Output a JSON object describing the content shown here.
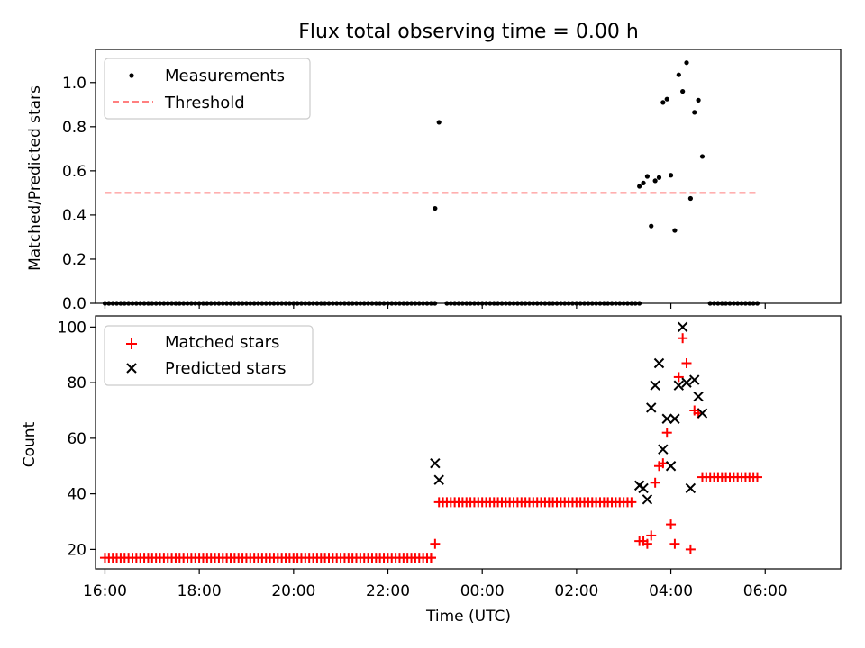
{
  "chart_data": [
    {
      "type": "scatter",
      "title": "Flux total observing time = 0.00 h",
      "xlabel": "",
      "ylabel": "Matched/Predicted stars",
      "xlim": [
        15.8,
        31.6
      ],
      "ylim": [
        0,
        1.15
      ],
      "yticks": [
        0.0,
        0.2,
        0.4,
        0.6,
        0.8,
        1.0
      ],
      "ytick_labels": [
        "0.0",
        "0.2",
        "0.4",
        "0.6",
        "0.8",
        "1.0"
      ],
      "threshold": {
        "y": 0.5,
        "x_range": [
          16.0,
          29.833
        ],
        "color": "#ff7f7f"
      },
      "legend": {
        "position": "top-left",
        "entries": [
          "Measurements",
          "Threshold"
        ]
      },
      "series": [
        {
          "name": "Measurements",
          "color": "#000000",
          "zero_runs": [
            {
              "start": 16.0,
              "end": 23.0,
              "step": 0.0833
            },
            {
              "start": 23.25,
              "end": 27.333,
              "step": 0.0833
            },
            {
              "start": 28.833,
              "end": 29.833,
              "step": 0.0833
            }
          ],
          "points": [
            [
              23.0,
              0.43
            ],
            [
              23.083,
              0.82
            ],
            [
              27.333,
              0.53
            ],
            [
              27.417,
              0.545
            ],
            [
              27.5,
              0.575
            ],
            [
              27.583,
              0.35
            ],
            [
              27.667,
              0.555
            ],
            [
              27.75,
              0.57
            ],
            [
              27.833,
              0.91
            ],
            [
              27.917,
              0.925
            ],
            [
              28.0,
              0.58
            ],
            [
              28.083,
              0.33
            ],
            [
              28.167,
              1.035
            ],
            [
              28.25,
              0.96
            ],
            [
              28.333,
              1.09
            ],
            [
              28.417,
              0.475
            ],
            [
              28.5,
              0.865
            ],
            [
              28.583,
              0.92
            ],
            [
              28.667,
              0.665
            ]
          ]
        }
      ]
    },
    {
      "type": "scatter",
      "title": "",
      "xlabel": "Time (UTC)",
      "ylabel": "Count",
      "xlim": [
        15.8,
        31.6
      ],
      "ylim": [
        13,
        104
      ],
      "yticks": [
        20,
        40,
        60,
        80,
        100
      ],
      "ytick_labels": [
        "20",
        "40",
        "60",
        "80",
        "100"
      ],
      "xticks": [
        16,
        18,
        20,
        22,
        24,
        26,
        28,
        30
      ],
      "xtick_labels": [
        "16:00",
        "18:00",
        "20:00",
        "22:00",
        "00:00",
        "02:00",
        "04:00",
        "06:00"
      ],
      "legend": {
        "position": "top-left",
        "entries": [
          "Matched stars",
          "Predicted stars"
        ]
      },
      "series": [
        {
          "name": "Matched stars",
          "marker": "+",
          "color": "#ff0000",
          "runs": [
            {
              "start": 16.0,
              "end": 22.917,
              "step": 0.0833,
              "value": 17
            },
            {
              "start": 23.083,
              "end": 27.167,
              "step": 0.0833,
              "value": 37
            },
            {
              "start": 28.75,
              "end": 29.833,
              "step": 0.0833,
              "value": 46
            }
          ],
          "points": [
            [
              22.917,
              17
            ],
            [
              23.0,
              22
            ],
            [
              27.333,
              23
            ],
            [
              27.417,
              23
            ],
            [
              27.5,
              22
            ],
            [
              27.583,
              25
            ],
            [
              27.667,
              44
            ],
            [
              27.75,
              50
            ],
            [
              27.833,
              51
            ],
            [
              27.917,
              62
            ],
            [
              28.0,
              29
            ],
            [
              28.083,
              22
            ],
            [
              28.167,
              82
            ],
            [
              28.25,
              96
            ],
            [
              28.333,
              87
            ],
            [
              28.417,
              20
            ],
            [
              28.5,
              70
            ],
            [
              28.583,
              69
            ],
            [
              28.667,
              46
            ]
          ]
        },
        {
          "name": "Predicted stars",
          "marker": "x",
          "color": "#000000",
          "points": [
            [
              23.0,
              51
            ],
            [
              23.083,
              45
            ],
            [
              27.333,
              43
            ],
            [
              27.417,
              42
            ],
            [
              27.5,
              38
            ],
            [
              27.583,
              71
            ],
            [
              27.667,
              79
            ],
            [
              27.75,
              87
            ],
            [
              27.833,
              56
            ],
            [
              27.917,
              67
            ],
            [
              28.0,
              50
            ],
            [
              28.083,
              67
            ],
            [
              28.167,
              79
            ],
            [
              28.25,
              100
            ],
            [
              28.333,
              80
            ],
            [
              28.417,
              42
            ],
            [
              28.5,
              81
            ],
            [
              28.583,
              75
            ],
            [
              28.667,
              69
            ]
          ]
        }
      ]
    }
  ]
}
